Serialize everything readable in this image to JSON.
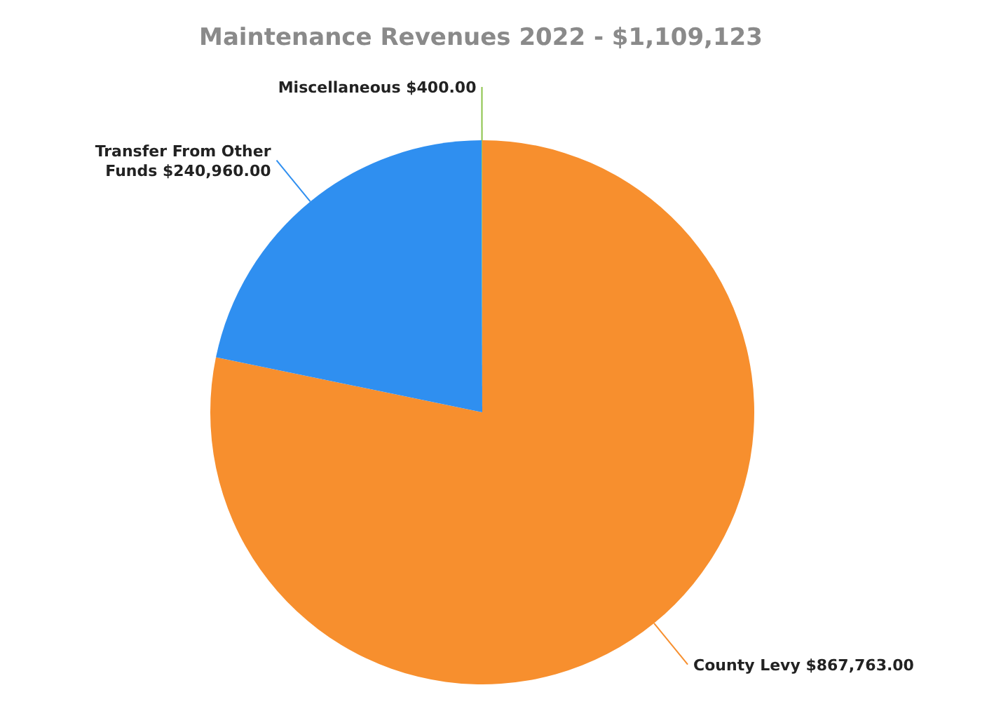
{
  "chart_data": {
    "type": "pie",
    "title": "Maintenance Revenues 2022 - $1,109,123",
    "categories": [
      "County Levy",
      "Transfer From Other Funds",
      "Miscellaneous"
    ],
    "values": [
      867763,
      240960,
      400
    ],
    "value_labels": [
      "$867,763.00",
      "$240,960.00",
      "$400.00"
    ],
    "colors": [
      "#f78f2e",
      "#2f8ff0",
      "#8bc34a"
    ],
    "legend": false
  }
}
